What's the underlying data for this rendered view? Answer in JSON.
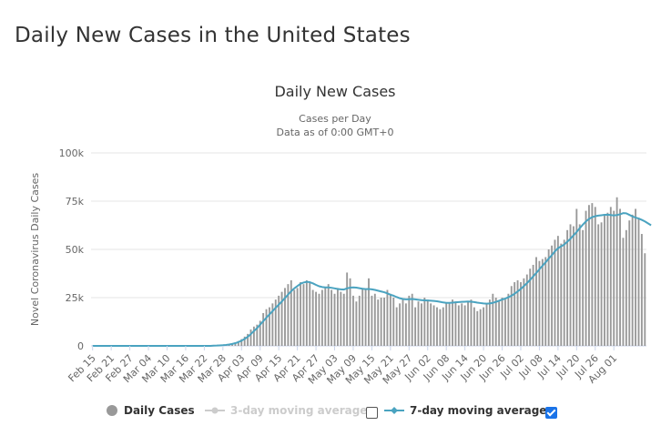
{
  "page": {
    "title": "Daily New Cases in the United States"
  },
  "chart_data": {
    "type": "bar",
    "title": "Daily New Cases",
    "subtitle_line1": "Cases per Day",
    "subtitle_line2": "Data as of 0:00 GMT+0",
    "ylabel": "Novel Coronavirus Daily Cases",
    "xlabel": "",
    "ylim": [
      0,
      100000
    ],
    "y_ticks": [
      {
        "value": 0,
        "label": "0"
      },
      {
        "value": 25000,
        "label": "25k"
      },
      {
        "value": 50000,
        "label": "50k"
      },
      {
        "value": 75000,
        "label": "75k"
      },
      {
        "value": 100000,
        "label": "100k"
      }
    ],
    "x_ticks": [
      "Feb 15",
      "Feb 21",
      "Feb 27",
      "Mar 04",
      "Mar 10",
      "Mar 16",
      "Mar 22",
      "Mar 28",
      "Apr 03",
      "Apr 09",
      "Apr 15",
      "Apr 21",
      "Apr 27",
      "May 03",
      "May 09",
      "May 15",
      "May 21",
      "May 27",
      "Jun 02",
      "Jun 08",
      "Jun 14",
      "Jun 20",
      "Jun 26",
      "Jul 02",
      "Jul 08",
      "Jul 14",
      "Jul 20",
      "Jul 26",
      "Aug 01"
    ],
    "grid": true,
    "legend_position": "bottom",
    "colors": {
      "bars": "#999999",
      "avg7": "#4aa3c0",
      "axis_text": "#666666",
      "grid": "#e6e6e6"
    },
    "series": [
      {
        "name": "Daily Cases",
        "values": [
          0,
          0,
          0,
          0,
          0,
          0,
          0,
          0,
          0,
          0,
          0,
          0,
          0,
          0,
          0,
          0,
          0,
          0,
          0,
          0,
          0,
          0,
          0,
          0,
          0,
          0,
          0,
          0,
          0,
          0,
          0,
          0,
          0,
          0,
          0,
          0,
          0,
          0,
          0,
          100,
          200,
          300,
          400,
          600,
          900,
          1300,
          1800,
          2500,
          3500,
          4800,
          6200,
          8500,
          10000,
          11000,
          13000,
          17000,
          19000,
          20000,
          22000,
          24000,
          26000,
          28000,
          30000,
          32000,
          34000,
          29000,
          30000,
          33000,
          32000,
          34000,
          33000,
          29000,
          28000,
          27000,
          29000,
          30000,
          32000,
          29000,
          27000,
          30000,
          28000,
          27000,
          38000,
          35000,
          26000,
          23000,
          26000,
          30000,
          29000,
          35000,
          26000,
          27000,
          24000,
          25000,
          25000,
          29000,
          27000,
          25000,
          20000,
          22000,
          24000,
          22000,
          26000,
          27000,
          20000,
          23000,
          22000,
          25000,
          24000,
          22000,
          21000,
          20000,
          19000,
          20000,
          22000,
          22000,
          24000,
          23000,
          21000,
          22000,
          21000,
          23000,
          24000,
          20000,
          18000,
          19000,
          20000,
          22000,
          24000,
          27000,
          25000,
          23000,
          25000,
          24000,
          27000,
          31000,
          33000,
          34000,
          33000,
          35000,
          37000,
          40000,
          42000,
          46000,
          44000,
          45000,
          46000,
          50000,
          52000,
          55000,
          57000,
          53000,
          55000,
          60000,
          63000,
          62000,
          71000,
          63000,
          60000,
          70000,
          73000,
          74000,
          72000,
          63000,
          64000,
          68000,
          69000,
          72000,
          70000,
          77000,
          71000,
          56000,
          60000,
          65000,
          68000,
          71000,
          66000,
          58000,
          48000
        ]
      },
      {
        "name": "3-day moving average",
        "values": []
      },
      {
        "name": "7-day moving average",
        "values": [
          0,
          0,
          0,
          0,
          0,
          0,
          0,
          0,
          0,
          0,
          0,
          0,
          0,
          0,
          0,
          0,
          0,
          0,
          0,
          0,
          0,
          0,
          0,
          0,
          0,
          0,
          0,
          0,
          0,
          0,
          0,
          0,
          0,
          0,
          0,
          0,
          0,
          0,
          0,
          100,
          150,
          250,
          350,
          500,
          700,
          1000,
          1400,
          2000,
          2700,
          3600,
          4700,
          6100,
          7700,
          9200,
          11000,
          12800,
          14600,
          16300,
          18000,
          19700,
          21400,
          23000,
          24800,
          26600,
          28300,
          29800,
          31000,
          32200,
          32800,
          33200,
          33000,
          32400,
          31600,
          30900,
          30500,
          30300,
          30300,
          30100,
          29800,
          29500,
          29300,
          29200,
          29800,
          30200,
          30300,
          30200,
          29900,
          29600,
          29400,
          29500,
          29300,
          29000,
          28600,
          28200,
          27800,
          27200,
          26500,
          26000,
          25300,
          24700,
          24300,
          24100,
          24200,
          24300,
          24100,
          23900,
          23700,
          23600,
          23500,
          23400,
          23300,
          23100,
          22800,
          22500,
          22300,
          22300,
          22400,
          22600,
          22700,
          22800,
          22900,
          23000,
          22900,
          22700,
          22400,
          22200,
          22000,
          21900,
          22000,
          22300,
          22800,
          23400,
          24000,
          24500,
          25200,
          26000,
          27000,
          28200,
          29500,
          31000,
          32500,
          34200,
          36000,
          37800,
          39700,
          41500,
          43300,
          45200,
          47000,
          49000,
          50600,
          51600,
          52500,
          54000,
          55500,
          57300,
          59000,
          61000,
          62800,
          64500,
          65800,
          66700,
          67200,
          67500,
          67700,
          67900,
          68000,
          67800,
          67600,
          67800,
          68200,
          68800,
          68700,
          67900,
          67100,
          66500,
          66000,
          65300,
          64500,
          63500,
          62500
        ]
      }
    ]
  },
  "legend": {
    "items": [
      {
        "label": "Daily Cases"
      },
      {
        "label": "3-day moving average"
      },
      {
        "label": "7-day moving average"
      }
    ],
    "checkbox_3day_checked": false,
    "checkbox_7day_checked": true
  }
}
